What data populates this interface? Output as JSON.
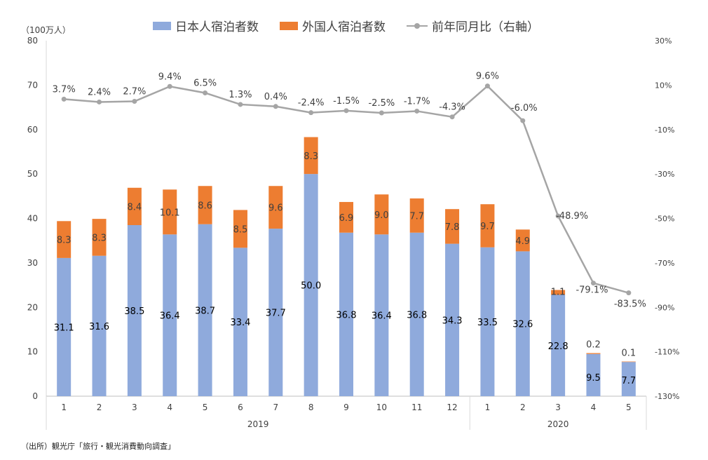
{
  "legend": {
    "japanese": "日本人宿泊者数",
    "foreign": "外国人宿泊者数",
    "yoy": "前年同月比（右軸）"
  },
  "unit": "（100万人）",
  "source": "（出所）観光庁「旅行・観光消費動向調査」",
  "colors": {
    "japanese": "#8faadc",
    "foreign": "#ed7d31",
    "yoy": "#a5a5a5"
  },
  "chart_data": {
    "type": "bar",
    "stacked": true,
    "categories": [
      "1",
      "2",
      "3",
      "4",
      "5",
      "6",
      "7",
      "8",
      "9",
      "10",
      "11",
      "12",
      "1",
      "2",
      "3",
      "4",
      "5"
    ],
    "groups": [
      {
        "label": "2019",
        "count": 12
      },
      {
        "label": "2020",
        "count": 5
      }
    ],
    "series": [
      {
        "name": "日本人宿泊者数",
        "axis": "left",
        "values": [
          31.1,
          31.6,
          38.5,
          36.4,
          38.7,
          33.4,
          37.7,
          50.0,
          36.8,
          36.4,
          36.8,
          34.3,
          33.5,
          32.6,
          22.8,
          9.5,
          7.7
        ],
        "labels": [
          "31.1",
          "31.6",
          "38.5",
          "36.4",
          "38.7",
          "33.4",
          "37.7",
          "50.0",
          "36.8",
          "36.4",
          "36.8",
          "34.3",
          "33.5",
          "32.6",
          "22.8",
          "9.5",
          "7.7"
        ]
      },
      {
        "name": "外国人宿泊者数",
        "axis": "left",
        "values": [
          8.3,
          8.3,
          8.4,
          10.1,
          8.6,
          8.5,
          9.6,
          8.3,
          6.9,
          9.0,
          7.7,
          7.8,
          9.7,
          4.9,
          1.1,
          0.2,
          0.1
        ],
        "labels": [
          "8.3",
          "8.3",
          "8.4",
          "10.1",
          "8.6",
          "8.5",
          "9.6",
          "8.3",
          "6.9",
          "9.0",
          "7.7",
          "7.8",
          "9.7",
          "4.9",
          "1.1",
          "0.2",
          "0.1"
        ]
      },
      {
        "name": "前年同月比（右軸）",
        "type": "line",
        "axis": "right",
        "values": [
          3.7,
          2.4,
          2.7,
          9.4,
          6.5,
          1.3,
          0.4,
          -2.4,
          -1.5,
          -2.5,
          -1.7,
          -4.3,
          9.6,
          -6.0,
          -48.9,
          -79.1,
          -83.5
        ],
        "labels": [
          "3.7%",
          "2.4%",
          "2.7%",
          "9.4%",
          "6.5%",
          "1.3%",
          "0.4%",
          "-2.4%",
          "-1.5%",
          "-2.5%",
          "-1.7%",
          "-4.3%",
          "9.6%",
          "-6.0%",
          "-48.9%",
          "-79.1%",
          "-83.5%"
        ]
      }
    ],
    "y_left": {
      "ylim": [
        0,
        80
      ],
      "ticks": [
        "0",
        "10",
        "20",
        "30",
        "40",
        "50",
        "60",
        "70",
        "80"
      ]
    },
    "y_right": {
      "ylim": [
        -130,
        30
      ],
      "ticks": [
        "30%",
        "10%",
        "-10%",
        "-30%",
        "-50%",
        "-70%",
        "-90%",
        "-110%",
        "-130%"
      ]
    },
    "grid": false,
    "legend_position": "top"
  }
}
